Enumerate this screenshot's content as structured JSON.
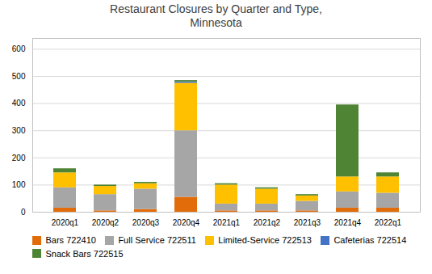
{
  "chart_data": {
    "type": "bar",
    "stacked": true,
    "title": "Restaurant Closures by Quarter and Type,\nMinnesota",
    "categories": [
      "2020q1",
      "2020q2",
      "2020q3",
      "2020q4",
      "2021q1",
      "2021q2",
      "2021q3",
      "2021q4",
      "2022q1"
    ],
    "series": [
      {
        "name": "Bars 722410",
        "color": "#e36c0a",
        "values": [
          15,
          5,
          10,
          55,
          5,
          5,
          5,
          15,
          15
        ]
      },
      {
        "name": "Full Service 722511",
        "color": "#a6a6a6",
        "values": [
          75,
          60,
          75,
          245,
          25,
          25,
          35,
          60,
          55
        ]
      },
      {
        "name": "Limited-Service 722513",
        "color": "#ffc000",
        "values": [
          55,
          30,
          20,
          175,
          70,
          55,
          20,
          55,
          60
        ]
      },
      {
        "name": "Cafeterias 722514",
        "color": "#4472c4",
        "values": [
          0,
          0,
          0,
          5,
          0,
          0,
          0,
          0,
          0
        ]
      },
      {
        "name": "Snack Bars 722515",
        "color": "#4e8434",
        "values": [
          15,
          5,
          5,
          5,
          5,
          5,
          5,
          265,
          15
        ]
      }
    ],
    "ylim": [
      0,
      640
    ],
    "yticks": [
      0,
      100,
      200,
      300,
      400,
      500,
      600
    ],
    "grid": true,
    "legend": "bottom"
  }
}
